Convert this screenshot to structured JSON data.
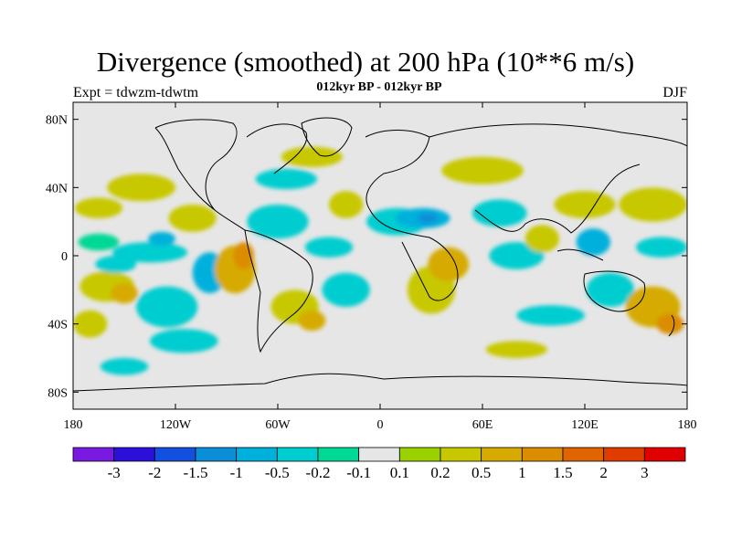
{
  "title": "Divergence (smoothed) at 200 hPa (10**6 m/s)",
  "subtitle": "012kyr BP - 012kyr BP",
  "experiment": "Expt = tdwzm-tdwtm",
  "season": "DJF",
  "map": {
    "projection": "cylindrical equidistant",
    "lon_range": [
      -180,
      180
    ],
    "lat_range": [
      -90,
      90
    ],
    "ocean_background": "#e6e6e6",
    "coastline_color": "#000000",
    "lat_ticks": [
      {
        "lat": 80,
        "label": "80N"
      },
      {
        "lat": 40,
        "label": "40N"
      },
      {
        "lat": 0,
        "label": "0"
      },
      {
        "lat": -40,
        "label": "40S"
      },
      {
        "lat": -80,
        "label": "80S"
      }
    ],
    "lon_ticks": [
      {
        "lon": -180,
        "label": "180"
      },
      {
        "lon": -120,
        "label": "120W"
      },
      {
        "lon": -60,
        "label": "60W"
      },
      {
        "lon": 0,
        "label": "0"
      },
      {
        "lon": 60,
        "label": "60E"
      },
      {
        "lon": 120,
        "label": "120E"
      },
      {
        "lon": 180,
        "label": "180"
      }
    ]
  },
  "colorbar": {
    "colors": [
      "#7a19e0",
      "#2a10d8",
      "#1450e0",
      "#0a8ed8",
      "#00b0dc",
      "#00cdd0",
      "#00d896",
      "#e6e6e6",
      "#9ad200",
      "#c8c800",
      "#d6aa00",
      "#dc8c00",
      "#e06400",
      "#e03c00",
      "#e00000"
    ],
    "labels": [
      "-3",
      "-2",
      "-1.5",
      "-1",
      "-0.5",
      "-0.2",
      "-0.1",
      "0.1",
      "0.2",
      "0.5",
      "1",
      "1.5",
      "2",
      "3"
    ]
  },
  "field_blobs": [
    {
      "lon": -165,
      "lat": 28,
      "rx": 14,
      "ry": 6,
      "level": "0.2"
    },
    {
      "lon": -165,
      "lat": 8,
      "rx": 12,
      "ry": 5,
      "level": "-0.1"
    },
    {
      "lon": -160,
      "lat": -18,
      "rx": 16,
      "ry": 9,
      "level": "0.2"
    },
    {
      "lon": -150,
      "lat": -22,
      "rx": 8,
      "ry": 6,
      "level": "0.5"
    },
    {
      "lon": -170,
      "lat": -40,
      "rx": 10,
      "ry": 8,
      "level": "0.2"
    },
    {
      "lon": -155,
      "lat": -5,
      "rx": 12,
      "ry": 5,
      "level": "-0.2"
    },
    {
      "lon": -140,
      "lat": 40,
      "rx": 20,
      "ry": 8,
      "level": "0.2"
    },
    {
      "lon": -135,
      "lat": 2,
      "rx": 22,
      "ry": 6,
      "level": "-0.2"
    },
    {
      "lon": -128,
      "lat": 10,
      "rx": 8,
      "ry": 4,
      "level": "-0.5"
    },
    {
      "lon": -125,
      "lat": -30,
      "rx": 18,
      "ry": 12,
      "level": "-0.2"
    },
    {
      "lon": -115,
      "lat": -50,
      "rx": 20,
      "ry": 7,
      "level": "-0.2"
    },
    {
      "lon": -110,
      "lat": 22,
      "rx": 14,
      "ry": 8,
      "level": "0.2"
    },
    {
      "lon": -100,
      "lat": -10,
      "rx": 10,
      "ry": 12,
      "level": "-0.5"
    },
    {
      "lon": -85,
      "lat": -8,
      "rx": 12,
      "ry": 14,
      "level": "0.5"
    },
    {
      "lon": -80,
      "lat": 0,
      "rx": 6,
      "ry": 8,
      "level": "1"
    },
    {
      "lon": -60,
      "lat": 20,
      "rx": 18,
      "ry": 10,
      "level": "-0.2"
    },
    {
      "lon": -50,
      "lat": -30,
      "rx": 14,
      "ry": 10,
      "level": "0.2"
    },
    {
      "lon": -40,
      "lat": -38,
      "rx": 8,
      "ry": 6,
      "level": "0.5"
    },
    {
      "lon": -55,
      "lat": 45,
      "rx": 18,
      "ry": 6,
      "level": "-0.2"
    },
    {
      "lon": -40,
      "lat": 58,
      "rx": 18,
      "ry": 6,
      "level": "0.2"
    },
    {
      "lon": -30,
      "lat": 5,
      "rx": 14,
      "ry": 6,
      "level": "-0.2"
    },
    {
      "lon": -20,
      "lat": -20,
      "rx": 14,
      "ry": 10,
      "level": "-0.2"
    },
    {
      "lon": -20,
      "lat": 30,
      "rx": 10,
      "ry": 8,
      "level": "0.2"
    },
    {
      "lon": 10,
      "lat": 20,
      "rx": 18,
      "ry": 8,
      "level": "-0.2"
    },
    {
      "lon": 25,
      "lat": 22,
      "rx": 16,
      "ry": 6,
      "level": "-0.5"
    },
    {
      "lon": 28,
      "lat": 22,
      "rx": 6,
      "ry": 3,
      "level": "-1"
    },
    {
      "lon": 30,
      "lat": -20,
      "rx": 14,
      "ry": 14,
      "level": "0.2"
    },
    {
      "lon": 40,
      "lat": -5,
      "rx": 12,
      "ry": 10,
      "level": "0.5"
    },
    {
      "lon": 60,
      "lat": 50,
      "rx": 24,
      "ry": 8,
      "level": "0.2"
    },
    {
      "lon": 70,
      "lat": 25,
      "rx": 16,
      "ry": 8,
      "level": "-0.2"
    },
    {
      "lon": 80,
      "lat": 0,
      "rx": 16,
      "ry": 8,
      "level": "-0.2"
    },
    {
      "lon": 95,
      "lat": 10,
      "rx": 10,
      "ry": 8,
      "level": "0.2"
    },
    {
      "lon": 120,
      "lat": 30,
      "rx": 18,
      "ry": 8,
      "level": "0.2"
    },
    {
      "lon": 125,
      "lat": 8,
      "rx": 10,
      "ry": 8,
      "level": "-0.5"
    },
    {
      "lon": 135,
      "lat": -20,
      "rx": 14,
      "ry": 10,
      "level": "-0.2"
    },
    {
      "lon": 160,
      "lat": 30,
      "rx": 20,
      "ry": 10,
      "level": "0.2"
    },
    {
      "lon": 165,
      "lat": 5,
      "rx": 15,
      "ry": 6,
      "level": "-0.2"
    },
    {
      "lon": 160,
      "lat": -30,
      "rx": 16,
      "ry": 12,
      "level": "0.5"
    },
    {
      "lon": 170,
      "lat": -40,
      "rx": 8,
      "ry": 6,
      "level": "1"
    },
    {
      "lon": 100,
      "lat": -35,
      "rx": 20,
      "ry": 6,
      "level": "-0.2"
    },
    {
      "lon": 80,
      "lat": -55,
      "rx": 18,
      "ry": 5,
      "level": "0.2"
    },
    {
      "lon": -150,
      "lat": -65,
      "rx": 14,
      "ry": 5,
      "level": "-0.2"
    }
  ]
}
